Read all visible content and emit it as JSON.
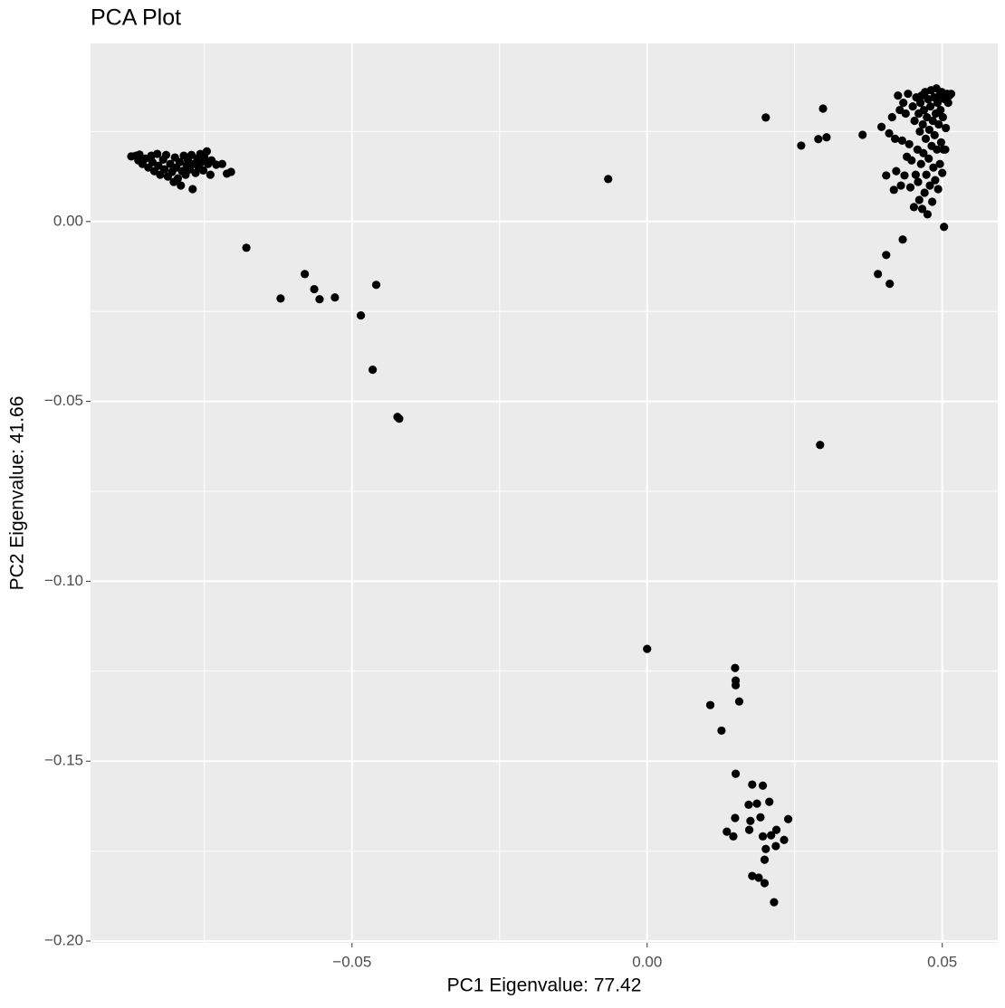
{
  "chart_data": {
    "type": "scatter",
    "title": "PCA Plot",
    "x_label": "PC1 Eigenvalue: 77.42",
    "y_label": "PC2 Eigenvalue: 41.66",
    "xlim": [
      -0.0943,
      0.0594
    ],
    "ylim": [
      -0.2005,
      0.0495
    ],
    "xticks": [
      {
        "value": -0.05,
        "label": "−0.05"
      },
      {
        "value": 0,
        "label": "0.00"
      },
      0.05
    ],
    "yticks": [
      {
        "value": -0.2,
        "label": "−0.20"
      },
      {
        "value": -0.15,
        "label": "−0.15"
      },
      {
        "value": -0.1,
        "label": "−0.10"
      },
      {
        "value": -0.05,
        "label": "−0.05"
      },
      {
        "value": 0,
        "label": "0.00"
      }
    ],
    "x_minor_ticks": [
      -0.075,
      -0.025,
      0.025
    ],
    "y_minor_ticks": [
      -0.175,
      -0.125,
      -0.075,
      -0.025,
      0.025
    ],
    "grid": true,
    "color": "#000000",
    "x": [
      -0.0874,
      -0.0866,
      -0.086,
      -0.0862,
      -0.0855,
      -0.085,
      -0.0845,
      -0.084,
      -0.0838,
      -0.0835,
      -0.083,
      -0.0828,
      -0.0825,
      -0.082,
      -0.0818,
      -0.0815,
      -0.0812,
      -0.0808,
      -0.0805,
      -0.0802,
      -0.08,
      -0.0798,
      -0.0795,
      -0.0792,
      -0.079,
      -0.0788,
      -0.0785,
      -0.0782,
      -0.078,
      -0.0778,
      -0.0775,
      -0.0772,
      -0.077,
      -0.0768,
      -0.0765,
      -0.0762,
      -0.076,
      -0.0757,
      -0.0755,
      -0.0752,
      -0.075,
      -0.0746,
      -0.0744,
      -0.074,
      -0.0738,
      -0.073,
      -0.072,
      -0.0712,
      -0.0705,
      -0.0679,
      -0.058,
      -0.0621,
      -0.0564,
      -0.0555,
      -0.0529,
      -0.0459,
      -0.0485,
      -0.0465,
      -0.0423,
      -0.042,
      -0.0066,
      0.0201,
      0.0298,
      0.0261,
      0.029,
      0.0304,
      0.0365,
      0.0293,
      0.0503,
      0.0433,
      0.0405,
      0.0391,
      0.0411,
      0.0397,
      0.0405,
      0.041,
      0.0415,
      0.0418,
      0.042,
      0.0422,
      0.0425,
      0.0428,
      0.043,
      0.0432,
      0.0434,
      0.0436,
      0.0438,
      0.044,
      0.0442,
      0.0444,
      0.0446,
      0.0448,
      0.045,
      0.0452,
      0.0453,
      0.0455,
      0.0456,
      0.0458,
      0.0459,
      0.046,
      0.0461,
      0.0462,
      0.0463,
      0.0464,
      0.0465,
      0.0466,
      0.0467,
      0.0468,
      0.0469,
      0.047,
      0.0471,
      0.0472,
      0.0473,
      0.0474,
      0.0475,
      0.0476,
      0.0477,
      0.0478,
      0.0479,
      0.048,
      0.0481,
      0.0482,
      0.0483,
      0.0484,
      0.0485,
      0.0486,
      0.0487,
      0.0488,
      0.0489,
      0.049,
      0.0491,
      0.0492,
      0.0493,
      0.0494,
      0.0495,
      0.0496,
      0.0497,
      0.0498,
      0.0499,
      0.05,
      0.0501,
      0.0502,
      0.0504,
      0.0506,
      0.0508,
      0.051,
      0.0512,
      0.0515,
      0.0505,
      0.0,
      0.0149,
      0.015,
      0.015,
      0.0107,
      0.0156,
      0.0126,
      0.015,
      0.0178,
      0.0196,
      0.0172,
      0.0186,
      0.0207,
      0.0149,
      0.0175,
      0.0192,
      0.0239,
      0.0173,
      0.0135,
      0.0146,
      0.0219,
      0.0196,
      0.021,
      0.0232,
      0.0201,
      0.0218,
      0.0199,
      0.0178,
      0.0189,
      0.0199,
      0.0215
    ],
    "values": [
      0.0181,
      0.0183,
      0.0186,
      0.017,
      0.016,
      0.0175,
      0.015,
      0.0183,
      0.0165,
      0.014,
      0.0188,
      0.0155,
      0.013,
      0.0172,
      0.0145,
      0.0185,
      0.0125,
      0.016,
      0.0138,
      0.011,
      0.0178,
      0.015,
      0.012,
      0.0165,
      0.01,
      0.014,
      0.0183,
      0.013,
      0.0155,
      0.017,
      0.0145,
      0.0185,
      0.009,
      0.016,
      0.0135,
      0.0175,
      0.015,
      0.0188,
      0.0165,
      0.0142,
      0.0178,
      0.0195,
      0.016,
      0.013,
      0.017,
      0.0158,
      0.016,
      0.0133,
      0.0138,
      -0.0073,
      -0.0146,
      -0.0214,
      -0.0188,
      -0.0216,
      -0.0211,
      -0.0176,
      -0.0261,
      -0.0412,
      -0.0543,
      -0.0548,
      0.0118,
      0.0289,
      0.0314,
      0.0211,
      0.0229,
      0.0234,
      0.0241,
      -0.0621,
      -0.0015,
      -0.005,
      -0.0093,
      -0.0146,
      -0.0173,
      0.0263,
      0.0128,
      0.0245,
      0.029,
      0.0088,
      0.023,
      0.014,
      0.035,
      0.031,
      0.01,
      0.0225,
      0.033,
      0.0128,
      0.03,
      0.018,
      0.0355,
      0.0215,
      0.0095,
      0.017,
      0.032,
      0.004,
      0.028,
      0.013,
      0.0345,
      0.02,
      0.011,
      0.03,
      0.006,
      0.025,
      0.033,
      0.016,
      0.035,
      0.0035,
      0.027,
      0.019,
      0.031,
      0.008,
      0.036,
      0.023,
      0.013,
      0.029,
      0.002,
      0.034,
      0.0175,
      0.0255,
      0.01,
      0.032,
      0.0365,
      0.021,
      0.0055,
      0.028,
      0.015,
      0.0345,
      0.024,
      0.0115,
      0.03,
      0.037,
      0.02,
      0.033,
      0.009,
      0.027,
      0.035,
      0.016,
      0.031,
      0.022,
      0.036,
      0.0135,
      0.029,
      0.02,
      0.034,
      0.026,
      0.0355,
      0.033,
      0.035,
      0.0355,
      0.02,
      -0.1188,
      -0.1241,
      -0.1276,
      -0.1289,
      -0.1344,
      -0.1334,
      -0.1415,
      -0.1535,
      -0.1565,
      -0.1568,
      -0.1621,
      -0.1618,
      -0.1613,
      -0.1658,
      -0.1666,
      -0.1656,
      -0.1661,
      -0.1691,
      -0.1696,
      -0.1709,
      -0.1691,
      -0.1709,
      -0.1706,
      -0.1719,
      -0.1744,
      -0.1736,
      -0.1774,
      -0.1819,
      -0.1824,
      -0.1839,
      -0.1892
    ]
  }
}
